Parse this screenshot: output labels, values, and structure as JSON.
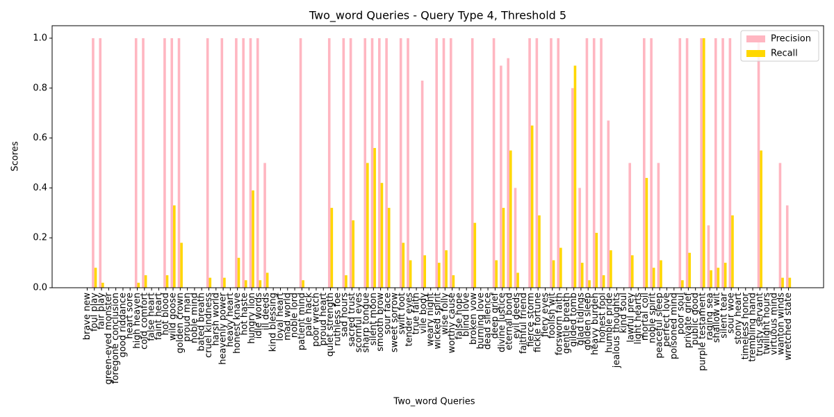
{
  "chart_data": {
    "type": "bar",
    "title": "Two_word Queries - Query Type 4, Threshold 5",
    "xlabel": "Two_word Queries",
    "ylabel": "Scores",
    "categories": [
      "brave new",
      "foul play",
      "fair play",
      "green-eyed monster",
      "foregone conclusion",
      "good riddance",
      "heart sore",
      "high heaven",
      "cold comfort",
      "false heart",
      "faint heart",
      "hot blood",
      "wild goose",
      "golden crown",
      "proud man",
      "noble mind",
      "bated breath",
      "cruel kindness",
      "harsh world",
      "heavenly power",
      "heavy heart",
      "honest knave",
      "hot haste",
      "hungry lion",
      "idle words",
      "ill deeds",
      "kind blessing",
      "loyal heart",
      "mad world",
      "noble lord",
      "patient mind",
      "pale hack",
      "poor wretch",
      "proud heart",
      "quiet strength",
      "ruthless foe",
      "sad hours",
      "sacred trust",
      "scornful eyes",
      "sharp tongue",
      "silent moon",
      "smooth brow",
      "sour face",
      "sweet sorrow",
      "swift foot",
      "tender eyes",
      "true faith",
      "vile body",
      "weary night",
      "wicked spirit",
      "wise folly",
      "worthy cause",
      "false hope",
      "blind love",
      "broken vow",
      "burning love",
      "dead silence",
      "deep grief",
      "divine justice",
      "eternal bond",
      "evil deeds",
      "faithful friend",
      "fierce storm",
      "fickle fortune",
      "fiery eyes",
      "foolish wit",
      "forsworn faith",
      "gentle breath",
      "gilded tomb",
      "glad tidings",
      "golden sleep",
      "heavy burden",
      "honest fool",
      "humble pride",
      "jealous thoughts",
      "kind soul",
      "lawful prey",
      "light hearts",
      "mortal coil",
      "noble spirit",
      "peaceful sleep",
      "perfect love",
      "poisoned mind",
      "poor soul",
      "private grief",
      "public good",
      "purple testament",
      "raging sea",
      "shallow wit",
      "silent tear",
      "sour woe",
      "stony heart",
      "timeless honor",
      "trembling hand",
      "trusty servant",
      "twilight hours",
      "virtuous mind",
      "wanton winds",
      "wretched state"
    ],
    "series": [
      {
        "name": "Precision",
        "color": "#ffb6c1",
        "values": [
          0,
          1,
          1,
          0,
          0,
          0,
          0,
          1,
          1,
          0,
          0,
          1,
          1,
          1,
          0,
          0,
          0,
          1,
          0,
          1,
          0,
          1,
          1,
          1,
          1,
          0.5,
          0,
          0,
          0,
          0,
          1,
          0,
          0,
          0,
          1,
          0,
          1,
          1,
          0,
          1,
          1,
          1,
          1,
          0,
          1,
          1,
          0,
          0.83,
          0,
          1,
          1,
          1,
          0,
          0,
          1,
          0,
          0,
          1,
          0.89,
          0.92,
          0.4,
          0,
          1,
          1,
          0,
          1,
          1,
          0,
          0.8,
          0.4,
          1,
          1,
          1,
          0.67,
          0,
          0,
          0.5,
          0,
          1,
          1,
          0.5,
          0,
          0,
          1,
          1,
          0,
          1,
          0.25,
          1,
          1,
          1,
          0,
          0,
          0,
          1,
          0,
          0,
          0.5,
          0.33
        ]
      },
      {
        "name": "Recall",
        "color": "#ffd700",
        "values": [
          0,
          0.08,
          0.02,
          0,
          0,
          0,
          0,
          0.02,
          0.05,
          0,
          0,
          0.05,
          0.33,
          0.18,
          0,
          0,
          0,
          0.04,
          0,
          0.04,
          0,
          0.12,
          0.03,
          0.39,
          0.03,
          0.06,
          0,
          0,
          0,
          0,
          0.03,
          0,
          0,
          0,
          0.32,
          0,
          0.05,
          0.27,
          0,
          0.5,
          0.56,
          0.42,
          0.32,
          0,
          0.18,
          0.11,
          0,
          0.13,
          0,
          0.1,
          0.15,
          0.05,
          0,
          0,
          0.26,
          0,
          0,
          0.11,
          0.32,
          0.55,
          0.06,
          0,
          0.65,
          0.29,
          0,
          0.11,
          0.16,
          0,
          0.89,
          0.1,
          0.03,
          0.22,
          0.05,
          0.15,
          0,
          0,
          0.13,
          0,
          0.44,
          0.08,
          0.11,
          0,
          0,
          0.03,
          0.14,
          0,
          1,
          0.07,
          0.08,
          0.1,
          0.29,
          0,
          0,
          0,
          0.55,
          0,
          0,
          0.04,
          0.04
        ]
      }
    ],
    "ylim": [
      0,
      1.05
    ],
    "yticks": [
      {
        "value": 0,
        "label": "0.0"
      },
      {
        "value": 0.2,
        "label": "0.2"
      },
      {
        "value": 0.4,
        "label": "0.4"
      },
      {
        "value": 0.6,
        "label": "0.6"
      },
      {
        "value": 0.8,
        "label": "0.8"
      },
      {
        "value": 1,
        "label": "1.0"
      }
    ],
    "legend": "upper right"
  }
}
